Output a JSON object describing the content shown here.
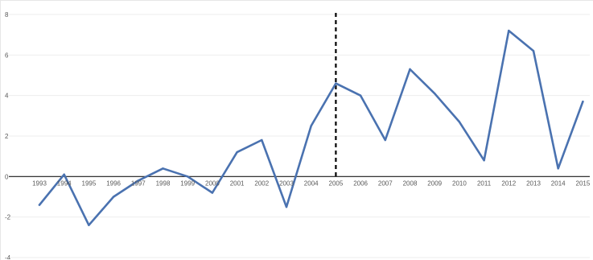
{
  "chart_data": {
    "type": "line",
    "title": "",
    "xlabel": "",
    "ylabel": "",
    "categories": [
      "1993",
      "1994",
      "1995",
      "1996",
      "1997",
      "1998",
      "1999",
      "2000",
      "2001",
      "2002",
      "2003",
      "2004",
      "2005",
      "2006",
      "2007",
      "2008",
      "2009",
      "2010",
      "2011",
      "2012",
      "2013",
      "2014",
      "2015"
    ],
    "series": [
      {
        "values": [
          -1.4,
          0.1,
          -2.4,
          -1.0,
          -0.2,
          0.4,
          0.0,
          -0.8,
          1.2,
          1.8,
          -1.5,
          2.5,
          4.6,
          4.0,
          1.8,
          5.3,
          4.1,
          2.7,
          0.8,
          7.2,
          6.2,
          0.4,
          3.7
        ],
        "color": "#4a72b0"
      }
    ],
    "ylim": [
      -4,
      8
    ],
    "yticks": [
      "-4",
      "-2",
      "0",
      "2",
      "4",
      "6",
      "8"
    ],
    "grid": true,
    "reference_line": {
      "x": "2005",
      "style": "dashed",
      "color": "#000000"
    }
  }
}
